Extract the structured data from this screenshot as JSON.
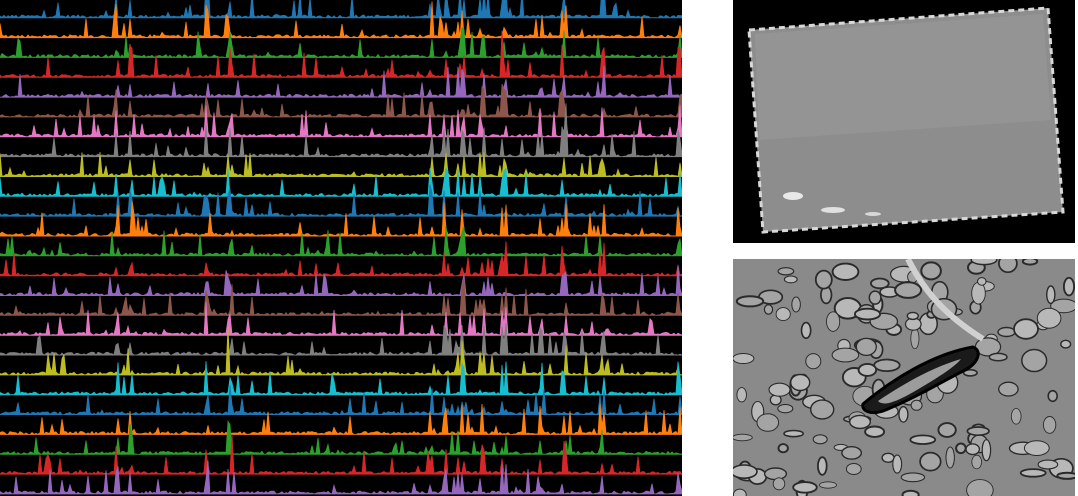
{
  "figure": {
    "panels": [
      "calcium-traces",
      "tissue-block",
      "electron-micrograph"
    ]
  },
  "traces": {
    "row_count": 25,
    "colors": [
      "#1f77b4",
      "#ff7f0e",
      "#2ca02c",
      "#d62728",
      "#9467bd",
      "#8c564b",
      "#e377c2",
      "#7f7f7f",
      "#bcbd22",
      "#17becf"
    ]
  },
  "tissue": {
    "background": "#000000",
    "block_fill": "#8d8d8d"
  },
  "em": {
    "background": "#8a8a8a",
    "cell_fill": "#b8b8b8",
    "membrane": "#2a2a2a",
    "vessel": "#111111"
  }
}
